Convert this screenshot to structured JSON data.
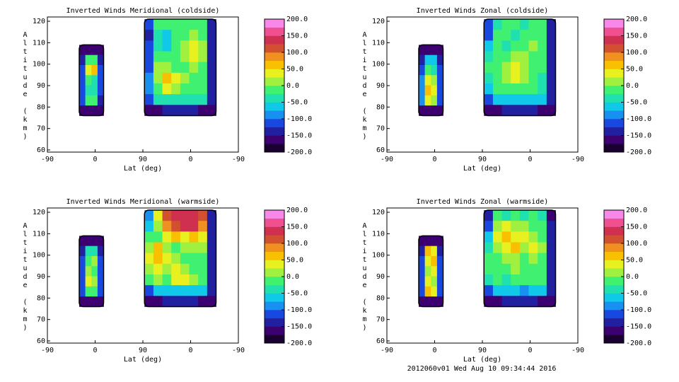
{
  "chart_data": [
    {
      "type": "contour",
      "title": "Inverted Winds Meridional (coldside)",
      "xlabel": "Lat (deg)",
      "ylabel": "Altitude (km)",
      "xlim": [
        0,
        360
      ],
      "xticks": [
        {
          "value": 0,
          "label": "-90"
        },
        {
          "value": 90,
          "label": "0"
        },
        {
          "value": 180,
          "label": "90"
        },
        {
          "value": 270,
          "label": "0"
        },
        {
          "value": 360,
          "label": "-90"
        }
      ],
      "ylim": [
        59,
        122
      ],
      "yticks": [
        60,
        70,
        80,
        90,
        100,
        110,
        120
      ],
      "zlevels": [
        -200,
        -175,
        -150,
        -125,
        -100,
        -75,
        -50,
        -25,
        0,
        25,
        50,
        75,
        100,
        125,
        150,
        175,
        200
      ],
      "zcolors": [
        "#1a0030",
        "#3c0070",
        "#2020a0",
        "#1848e0",
        "#1890f0",
        "#10c8e8",
        "#20e0b0",
        "#40f070",
        "#a0f040",
        "#e8f020",
        "#f8c000",
        "#f09020",
        "#d05030",
        "#d03050",
        "#f05090",
        "#f888e8"
      ],
      "zticks": [
        {
          "value": 200,
          "label": "200.0"
        },
        {
          "value": 150,
          "label": "150.0"
        },
        {
          "value": 100,
          "label": "100.0"
        },
        {
          "value": 50,
          "label": "50.0"
        },
        {
          "value": 0,
          "label": "0.0"
        },
        {
          "value": -50,
          "label": "-50.0"
        },
        {
          "value": -100,
          "label": "-100.0"
        },
        {
          "value": -150,
          "label": "-150.0"
        },
        {
          "value": -200,
          "label": "-200.0"
        }
      ],
      "fields": [
        {
          "x": [
            60,
            106
          ],
          "y": [
            76,
            109
          ],
          "z": [
            [
              -175,
              -175,
              -175,
              -175
            ],
            [
              -150,
              -25,
              -25,
              -150
            ],
            [
              -125,
              25,
              50,
              -125
            ],
            [
              -125,
              -25,
              -50,
              -125
            ],
            [
              -125,
              -50,
              -50,
              -125
            ],
            [
              -125,
              -25,
              -25,
              -150
            ],
            [
              -175,
              -175,
              -175,
              -175
            ]
          ]
        },
        {
          "x": [
            183,
            318
          ],
          "y": [
            76,
            121
          ],
          "z": [
            [
              -125,
              -25,
              -25,
              -25,
              -25,
              -25,
              -25,
              -150
            ],
            [
              -150,
              -50,
              -75,
              -25,
              -25,
              0,
              -25,
              -150
            ],
            [
              -125,
              -50,
              -75,
              -25,
              0,
              25,
              0,
              -150
            ],
            [
              -125,
              -25,
              -25,
              -25,
              0,
              25,
              0,
              -150
            ],
            [
              -125,
              0,
              0,
              -25,
              -25,
              0,
              -25,
              -150
            ],
            [
              -100,
              0,
              50,
              25,
              0,
              -25,
              -25,
              -150
            ],
            [
              -100,
              -25,
              25,
              0,
              -25,
              -25,
              -25,
              -150
            ],
            [
              -125,
              -50,
              -50,
              -50,
              -50,
              -50,
              -50,
              -150
            ],
            [
              -175,
              -175,
              -150,
              -150,
              -150,
              -150,
              -175,
              -175
            ]
          ]
        }
      ]
    },
    {
      "type": "contour",
      "title": "Inverted Winds Zonal (coldside)",
      "xlabel": "Lat (deg)",
      "ylabel": "Altitude (km)",
      "xlim": [
        0,
        360
      ],
      "xticks": [
        {
          "value": 0,
          "label": "-90"
        },
        {
          "value": 90,
          "label": "0"
        },
        {
          "value": 180,
          "label": "90"
        },
        {
          "value": 270,
          "label": "0"
        },
        {
          "value": 360,
          "label": "-90"
        }
      ],
      "ylim": [
        59,
        122
      ],
      "yticks": [
        60,
        70,
        80,
        90,
        100,
        110,
        120
      ],
      "zlevels": [
        -200,
        -175,
        -150,
        -125,
        -100,
        -75,
        -50,
        -25,
        0,
        25,
        50,
        75,
        100,
        125,
        150,
        175,
        200
      ],
      "zcolors": [
        "#1a0030",
        "#3c0070",
        "#2020a0",
        "#1848e0",
        "#1890f0",
        "#10c8e8",
        "#20e0b0",
        "#40f070",
        "#a0f040",
        "#e8f020",
        "#f8c000",
        "#f09020",
        "#d05030",
        "#d03050",
        "#f05090",
        "#f888e8"
      ],
      "zticks": [
        {
          "value": 200,
          "label": "200.0"
        },
        {
          "value": 150,
          "label": "150.0"
        },
        {
          "value": 100,
          "label": "100.0"
        },
        {
          "value": 50,
          "label": "50.0"
        },
        {
          "value": 0,
          "label": "0.0"
        },
        {
          "value": -50,
          "label": "-50.0"
        },
        {
          "value": -100,
          "label": "-100.0"
        },
        {
          "value": -150,
          "label": "-150.0"
        },
        {
          "value": -200,
          "label": "-200.0"
        }
      ],
      "fields": [
        {
          "x": [
            60,
            106
          ],
          "y": [
            76,
            109
          ],
          "z": [
            [
              -175,
              -175,
              -175,
              -175
            ],
            [
              -150,
              -75,
              -75,
              -150
            ],
            [
              -125,
              -25,
              -50,
              -125
            ],
            [
              -100,
              25,
              0,
              -125
            ],
            [
              -100,
              50,
              25,
              -125
            ],
            [
              -100,
              25,
              0,
              -125
            ],
            [
              -175,
              -175,
              -175,
              -175
            ]
          ]
        },
        {
          "x": [
            183,
            318
          ],
          "y": [
            76,
            121
          ],
          "z": [
            [
              -125,
              -50,
              -25,
              -25,
              -50,
              -25,
              -25,
              -150
            ],
            [
              -125,
              -25,
              -25,
              -50,
              -25,
              -25,
              -25,
              -150
            ],
            [
              -75,
              -25,
              -50,
              -25,
              -25,
              0,
              -25,
              -150
            ],
            [
              -50,
              -25,
              -25,
              0,
              0,
              -25,
              -25,
              -150
            ],
            [
              -25,
              -25,
              0,
              25,
              0,
              -25,
              -25,
              -150
            ],
            [
              -50,
              -25,
              0,
              25,
              0,
              -25,
              -50,
              -150
            ],
            [
              -75,
              -25,
              -25,
              -25,
              -25,
              -25,
              -50,
              -150
            ],
            [
              -125,
              -75,
              -75,
              -75,
              -75,
              -75,
              -75,
              -150
            ],
            [
              -175,
              -175,
              -150,
              -150,
              -150,
              -150,
              -175,
              -175
            ]
          ]
        }
      ]
    },
    {
      "type": "contour",
      "title": "Inverted Winds Meridional (warmside)",
      "xlabel": "Lat (deg)",
      "ylabel": "Altitude (km)",
      "xlim": [
        0,
        360
      ],
      "xticks": [
        {
          "value": 0,
          "label": "-90"
        },
        {
          "value": 90,
          "label": "0"
        },
        {
          "value": 180,
          "label": "90"
        },
        {
          "value": 270,
          "label": "0"
        },
        {
          "value": 360,
          "label": "-90"
        }
      ],
      "ylim": [
        59,
        122
      ],
      "yticks": [
        60,
        70,
        80,
        90,
        100,
        110,
        120
      ],
      "zlevels": [
        -200,
        -175,
        -150,
        -125,
        -100,
        -75,
        -50,
        -25,
        0,
        25,
        50,
        75,
        100,
        125,
        150,
        175,
        200
      ],
      "zcolors": [
        "#1a0030",
        "#3c0070",
        "#2020a0",
        "#1848e0",
        "#1890f0",
        "#10c8e8",
        "#20e0b0",
        "#40f070",
        "#a0f040",
        "#e8f020",
        "#f8c000",
        "#f09020",
        "#d05030",
        "#d03050",
        "#f05090",
        "#f888e8"
      ],
      "zticks": [
        {
          "value": 200,
          "label": "200.0"
        },
        {
          "value": 150,
          "label": "150.0"
        },
        {
          "value": 100,
          "label": "100.0"
        },
        {
          "value": 50,
          "label": "50.0"
        },
        {
          "value": 0,
          "label": "0.0"
        },
        {
          "value": -50,
          "label": "-50.0"
        },
        {
          "value": -100,
          "label": "-100.0"
        },
        {
          "value": -150,
          "label": "-150.0"
        },
        {
          "value": -200,
          "label": "-200.0"
        }
      ],
      "fields": [
        {
          "x": [
            60,
            106
          ],
          "y": [
            76,
            109
          ],
          "z": [
            [
              -175,
              -175,
              -175,
              -175
            ],
            [
              -150,
              -50,
              -50,
              -150
            ],
            [
              -125,
              -25,
              0,
              -125
            ],
            [
              -125,
              0,
              -25,
              -125
            ],
            [
              -125,
              25,
              0,
              -125
            ],
            [
              -125,
              -25,
              -25,
              -125
            ],
            [
              -175,
              -175,
              -175,
              -175
            ]
          ]
        },
        {
          "x": [
            183,
            318
          ],
          "y": [
            76,
            121
          ],
          "z": [
            [
              -100,
              25,
              100,
              125,
              125,
              125,
              100,
              -150
            ],
            [
              -75,
              0,
              75,
              100,
              125,
              125,
              75,
              -150
            ],
            [
              -25,
              -25,
              25,
              50,
              25,
              50,
              25,
              -150
            ],
            [
              0,
              50,
              0,
              -25,
              0,
              0,
              0,
              -150
            ],
            [
              25,
              50,
              25,
              0,
              -25,
              -25,
              -25,
              -150
            ],
            [
              0,
              25,
              0,
              25,
              0,
              -25,
              -25,
              -150
            ],
            [
              -25,
              0,
              -25,
              25,
              25,
              0,
              -25,
              -150
            ],
            [
              -125,
              -75,
              -75,
              -75,
              -75,
              -75,
              -75,
              -150
            ],
            [
              -175,
              -175,
              -150,
              -150,
              -150,
              -150,
              -175,
              -175
            ]
          ]
        }
      ]
    },
    {
      "type": "contour",
      "title": "Inverted Winds Zonal (warmside)",
      "xlabel": "Lat (deg)",
      "ylabel": "Altitude (km)",
      "xlim": [
        0,
        360
      ],
      "xticks": [
        {
          "value": 0,
          "label": "-90"
        },
        {
          "value": 90,
          "label": "0"
        },
        {
          "value": 180,
          "label": "90"
        },
        {
          "value": 270,
          "label": "0"
        },
        {
          "value": 360,
          "label": "-90"
        }
      ],
      "ylim": [
        59,
        122
      ],
      "yticks": [
        60,
        70,
        80,
        90,
        100,
        110,
        120
      ],
      "zlevels": [
        -200,
        -175,
        -150,
        -125,
        -100,
        -75,
        -50,
        -25,
        0,
        25,
        50,
        75,
        100,
        125,
        150,
        175,
        200
      ],
      "zcolors": [
        "#1a0030",
        "#3c0070",
        "#2020a0",
        "#1848e0",
        "#1890f0",
        "#10c8e8",
        "#20e0b0",
        "#40f070",
        "#a0f040",
        "#e8f020",
        "#f8c000",
        "#f09020",
        "#d05030",
        "#d03050",
        "#f05090",
        "#f888e8"
      ],
      "zticks": [
        {
          "value": 200,
          "label": "200.0"
        },
        {
          "value": 150,
          "label": "150.0"
        },
        {
          "value": 100,
          "label": "100.0"
        },
        {
          "value": 50,
          "label": "50.0"
        },
        {
          "value": 0,
          "label": "0.0"
        },
        {
          "value": -50,
          "label": "-50.0"
        },
        {
          "value": -100,
          "label": "-100.0"
        },
        {
          "value": -150,
          "label": "-150.0"
        },
        {
          "value": -200,
          "label": "-200.0"
        }
      ],
      "fields": [
        {
          "x": [
            60,
            106
          ],
          "y": [
            76,
            109
          ],
          "z": [
            [
              -175,
              -175,
              -175,
              -175
            ],
            [
              -150,
              50,
              25,
              -150
            ],
            [
              -125,
              25,
              50,
              -125
            ],
            [
              -125,
              0,
              25,
              -125
            ],
            [
              -125,
              25,
              0,
              -125
            ],
            [
              -125,
              50,
              25,
              -125
            ],
            [
              -175,
              -175,
              -175,
              -175
            ]
          ]
        },
        {
          "x": [
            183,
            318
          ],
          "y": [
            76,
            121
          ],
          "z": [
            [
              -150,
              -25,
              -50,
              -25,
              -50,
              -25,
              -50,
              -175
            ],
            [
              -125,
              0,
              25,
              0,
              0,
              -25,
              -25,
              -150
            ],
            [
              -75,
              25,
              50,
              25,
              25,
              0,
              -25,
              -150
            ],
            [
              -50,
              0,
              25,
              50,
              0,
              25,
              0,
              -150
            ],
            [
              -25,
              -25,
              0,
              0,
              -25,
              0,
              -25,
              -150
            ],
            [
              -25,
              -25,
              -25,
              0,
              -25,
              -25,
              -25,
              -150
            ],
            [
              -50,
              -25,
              -50,
              -25,
              -25,
              -25,
              -25,
              -150
            ],
            [
              -125,
              -75,
              -75,
              -75,
              -100,
              -75,
              -75,
              -150
            ],
            [
              -175,
              -175,
              -150,
              -150,
              -150,
              -150,
              -175,
              -175
            ]
          ]
        }
      ]
    }
  ],
  "footer": "2012060v01 Wed Aug 10 09:34:44 2016"
}
